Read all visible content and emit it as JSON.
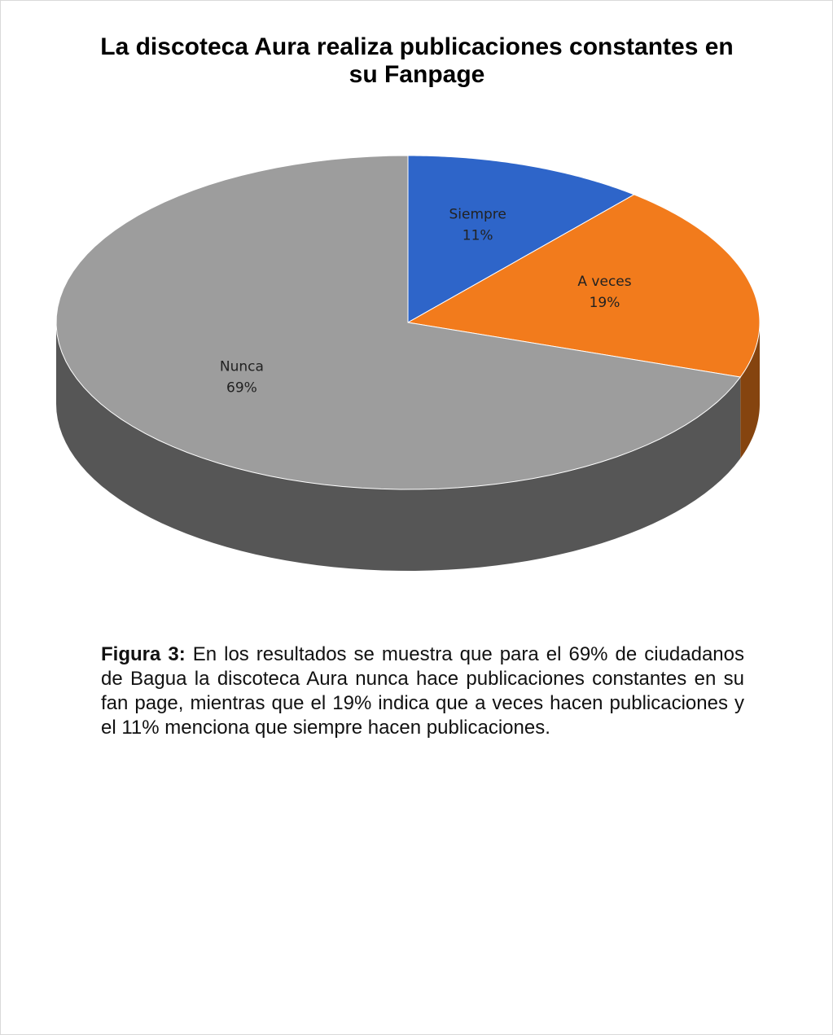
{
  "chart_data": {
    "type": "pie",
    "title": "La discoteca Aura realiza publicaciones constantes en su Fanpage",
    "categories": [
      "Siempre",
      "A veces",
      "Nunca"
    ],
    "values": [
      11,
      19,
      69
    ],
    "value_labels": [
      "11%",
      "19%",
      "69%"
    ],
    "colors": [
      "#2e65c9",
      "#f27b1c",
      "#9d9d9d"
    ]
  },
  "caption": {
    "label": "Figura 3:",
    "text": "En los resultados se muestra que para el 69% de ciudadanos de Bagua la discoteca Aura nunca hace publicaciones constantes en su fan page, mientras que el 19% indica que a veces hacen publicaciones y el 11% menciona que siempre hacen publicaciones."
  }
}
